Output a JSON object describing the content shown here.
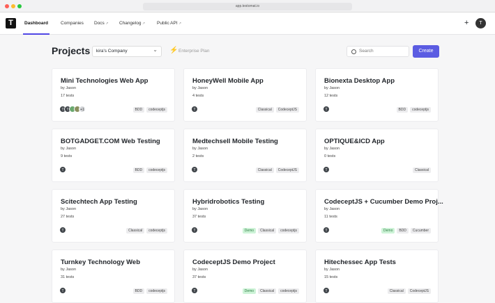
{
  "browser": {
    "url": "app.testomat.io"
  },
  "logo": "T",
  "nav": {
    "tabs": [
      {
        "text": "Dashboard",
        "active": true
      },
      {
        "text": "Companies"
      },
      {
        "text": "Docs",
        "external": true
      },
      {
        "text": "Changelog",
        "external": true
      },
      {
        "text": "Public API",
        "external": true
      }
    ],
    "add": "+",
    "avatar": "T"
  },
  "header": {
    "title": "Projects",
    "company": "kira's Company",
    "plan": "Enterprise Plan",
    "search_placeholder": "Search",
    "create": "Create"
  },
  "projects": [
    {
      "title": "Mini Technologies Web App",
      "author": "by Jason",
      "tests": "17 tests",
      "avatars": [
        "T",
        "T"
      ],
      "more": "+1",
      "tags": [
        {
          "text": "BDD"
        },
        {
          "text": "codeceptjs"
        }
      ]
    },
    {
      "title": "HoneyWell Mobile App",
      "author": "by Jason",
      "tests": "4 tests",
      "avatars": [
        "T"
      ],
      "tags": [
        {
          "text": "Classical"
        },
        {
          "text": "CodeceptJS"
        }
      ]
    },
    {
      "title": "Bionexta Desktop App",
      "author": "by Jason",
      "tests": "12 tests",
      "avatars": [
        "T"
      ],
      "tags": [
        {
          "text": "BDD"
        },
        {
          "text": "codeceptjs"
        }
      ]
    },
    {
      "title": "BOTGADGET.COM Web Testing",
      "author": "by Jason",
      "tests": "9 tests",
      "avatars": [
        "T"
      ],
      "tags": [
        {
          "text": "BDD"
        },
        {
          "text": "codeceptjs"
        }
      ]
    },
    {
      "title": "Medtechsell Mobile Testing",
      "author": "by Jason",
      "tests": "2 tests",
      "avatars": [
        "T"
      ],
      "tags": [
        {
          "text": "Classical"
        },
        {
          "text": "CodeceptJS"
        }
      ]
    },
    {
      "title": "OPTIQUE&ICD App",
      "author": "by Jason",
      "tests": "0 tests",
      "avatars": [
        "T"
      ],
      "tags": [
        {
          "text": "Classical"
        }
      ]
    },
    {
      "title": "Scitechtech App Testing",
      "author": "by Jason",
      "tests": "27 tests",
      "avatars": [
        "T"
      ],
      "tags": [
        {
          "text": "Classical"
        },
        {
          "text": "codeceptjs"
        }
      ]
    },
    {
      "title": "Hybridrobotics Testing",
      "author": "by Jason",
      "tests": "37 tests",
      "avatars": [
        "T"
      ],
      "tags": [
        {
          "text": "Demo",
          "color": "#cdf3d7"
        },
        {
          "text": "Classical"
        },
        {
          "text": "codeceptjs"
        }
      ]
    },
    {
      "title": "CodeceptJS + Cucumber Demo Proj...",
      "author": "by Jason",
      "tests": "11 tests",
      "avatars": [
        "T"
      ],
      "tags": [
        {
          "text": "Demo",
          "color": "#cdf3d7"
        },
        {
          "text": "BDD"
        },
        {
          "text": "Cucumber"
        }
      ]
    },
    {
      "title": "Turnkey Technology Web",
      "author": "by Jason",
      "tests": "31 tests",
      "avatars": [
        "T"
      ],
      "tags": [
        {
          "text": "BDD"
        },
        {
          "text": "codeceptjs"
        }
      ]
    },
    {
      "title": "CodeceptJS Demo Project",
      "author": "by Jason",
      "tests": "37 tests",
      "avatars": [
        "T"
      ],
      "tags": [
        {
          "text": "Demo",
          "color": "#cdf3d7"
        },
        {
          "text": "Classical"
        },
        {
          "text": "codeceptjs"
        }
      ]
    },
    {
      "title": "Hitechessec App Tests",
      "author": "by Jason",
      "tests": "15 tests",
      "avatars": [
        "T"
      ],
      "tags": [
        {
          "text": "Classical"
        },
        {
          "text": "CodeceptJS"
        }
      ]
    }
  ]
}
